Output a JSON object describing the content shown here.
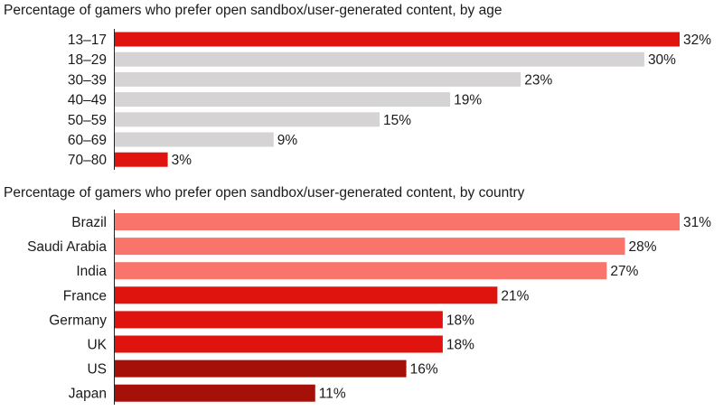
{
  "chart_data": [
    {
      "type": "bar",
      "orientation": "horizontal",
      "title": "Percentage of gamers who prefer open sandbox/user-generated content, by age",
      "categories": [
        "13–17",
        "18–29",
        "30–39",
        "40–49",
        "50–59",
        "60–69",
        "70–80"
      ],
      "values": [
        32,
        30,
        23,
        19,
        15,
        9,
        3
      ],
      "value_labels": [
        "32%",
        "30%",
        "23%",
        "19%",
        "15%",
        "9%",
        "3%"
      ],
      "bar_colors": [
        "#e0140f",
        "#d5d3d4",
        "#d5d3d4",
        "#d5d3d4",
        "#d5d3d4",
        "#d5d3d4",
        "#e0140f"
      ],
      "xlim": [
        0,
        32
      ],
      "grid": false,
      "legend": "none"
    },
    {
      "type": "bar",
      "orientation": "horizontal",
      "title": "Percentage of gamers who prefer open sandbox/user-generated content, by country",
      "categories": [
        "Brazil",
        "Saudi Arabia",
        "India",
        "France",
        "Germany",
        "UK",
        "US",
        "Japan"
      ],
      "values": [
        31,
        28,
        27,
        21,
        18,
        18,
        16,
        11
      ],
      "value_labels": [
        "31%",
        "28%",
        "27%",
        "21%",
        "18%",
        "18%",
        "16%",
        "11%"
      ],
      "bar_colors": [
        "#f9756b",
        "#f9756b",
        "#f9756b",
        "#e0140f",
        "#e0140f",
        "#e0140f",
        "#a51108",
        "#a51108"
      ],
      "xlim": [
        0,
        31
      ],
      "grid": false,
      "legend": "none"
    }
  ]
}
